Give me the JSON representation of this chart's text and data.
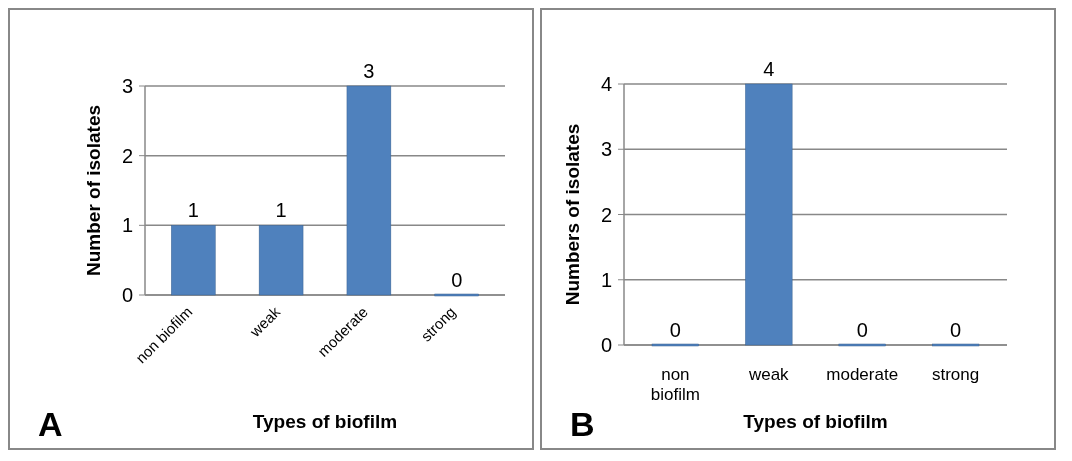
{
  "chart_data": [
    {
      "type": "bar",
      "xlabel": "Types of biofilm",
      "ylabel": "Number of isolates",
      "categories": [
        "non biofilm",
        "weak",
        "moderate",
        "strong"
      ],
      "values": [
        1,
        1,
        3,
        0
      ],
      "color": "#4f81bd",
      "ylim": [
        0,
        3
      ],
      "yticks": [
        0,
        1,
        2,
        3
      ],
      "grid": "y",
      "data_labels": true,
      "annotations": [
        "A"
      ]
    },
    {
      "type": "bar",
      "xlabel": "Types of biofilm",
      "ylabel": "Numbers of isolates",
      "categories": [
        "non biofilm",
        "weak",
        "moderate",
        "strong"
      ],
      "values": [
        0,
        4,
        0,
        0
      ],
      "color": "#4f81bd",
      "ylim": [
        0,
        4
      ],
      "yticks": [
        0,
        1,
        2,
        3,
        4
      ],
      "grid": "y",
      "data_labels": true,
      "annotations": [
        "B"
      ]
    }
  ]
}
